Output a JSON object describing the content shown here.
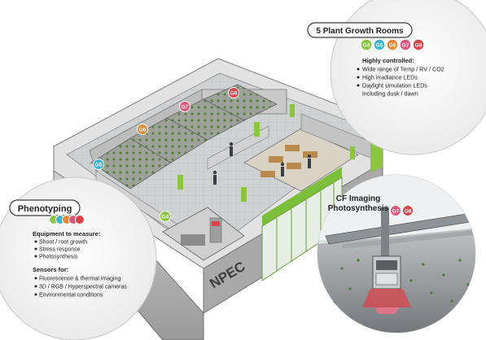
{
  "facility": {
    "logo_text": "NPEC"
  },
  "growth_rooms": {
    "title": "5 Plant Growth Rooms",
    "badges": [
      {
        "label": "G4",
        "color": "#8cc63f"
      },
      {
        "label": "G5",
        "color": "#3fb6c9"
      },
      {
        "label": "G6",
        "color": "#e58a3a"
      },
      {
        "label": "G7",
        "color": "#e0567a"
      },
      {
        "label": "G8",
        "color": "#d9434b"
      }
    ],
    "subtitle": "Highly controlled:",
    "bullets": [
      "Wide range of Temp / RV / CO2",
      "High irradiance LEDs",
      "Daylight simulation LEDs"
    ],
    "bullet_continuation": "including dusk / dawn"
  },
  "phenotyping": {
    "title": "Phenotyping",
    "dot_colors": [
      "#8cc63f",
      "#3fb6c9",
      "#e58a3a",
      "#e0567a",
      "#d9434b"
    ],
    "equipment_heading": "Equipment to measure:",
    "equipment": [
      "Shoot / root growth",
      "Stress response",
      "Photosynthesis"
    ],
    "sensors_heading": "Sensors for:",
    "sensors": [
      "Fluorescence & thermal imaging",
      "3D / RGB / Hyperspectral cameras",
      "Environmental conditions"
    ]
  },
  "cf_imaging": {
    "title_line1": "CF Imaging",
    "title_line2": "Photosynthesis",
    "badges": [
      {
        "label": "G7",
        "color": "#e0567a"
      },
      {
        "label": "G8",
        "color": "#d9434b"
      }
    ]
  },
  "room_markers": [
    {
      "label": "G4",
      "color": "#8cc63f"
    },
    {
      "label": "G5",
      "color": "#3fb6c9"
    },
    {
      "label": "G6",
      "color": "#e58a3a"
    },
    {
      "label": "G7",
      "color": "#e0567a"
    },
    {
      "label": "G8",
      "color": "#d9434b"
    }
  ]
}
